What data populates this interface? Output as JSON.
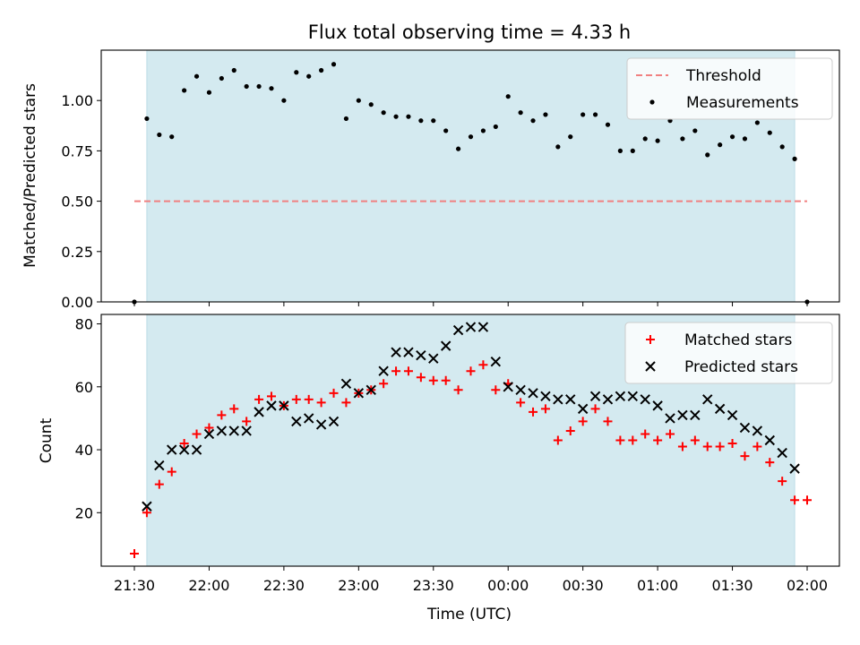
{
  "chart_data": [
    {
      "type": "scatter",
      "title": "Flux total observing time = 4.33 h",
      "ylabel": "Matched/Predicted stars",
      "xlabel": "",
      "ylim": [
        0,
        1.25
      ],
      "yticks": [
        "0.00",
        "0.25",
        "0.50",
        "0.75",
        "1.00"
      ],
      "shaded_x_range": [
        "21:35",
        "01:55"
      ],
      "shade_color": "#d4eaf0",
      "legend_position": "top-right",
      "threshold": {
        "name": "Threshold",
        "value": 0.5,
        "color": "#f08080",
        "style": "dashed",
        "x": [
          "21:30",
          "02:00"
        ]
      },
      "series": [
        {
          "name": "Measurements",
          "marker": "dot",
          "color": "#000000",
          "x": [
            "21:30",
            "21:35",
            "21:40",
            "21:45",
            "21:50",
            "21:55",
            "22:00",
            "22:05",
            "22:10",
            "22:15",
            "22:20",
            "22:25",
            "22:30",
            "22:35",
            "22:40",
            "22:45",
            "22:50",
            "22:55",
            "23:00",
            "23:05",
            "23:10",
            "23:15",
            "23:20",
            "23:25",
            "23:30",
            "23:35",
            "23:40",
            "23:45",
            "23:50",
            "23:55",
            "00:00",
            "00:05",
            "00:10",
            "00:15",
            "00:20",
            "00:25",
            "00:30",
            "00:35",
            "00:40",
            "00:45",
            "00:50",
            "00:55",
            "01:00",
            "01:05",
            "01:10",
            "01:15",
            "01:20",
            "01:25",
            "01:30",
            "01:35",
            "01:40",
            "01:45",
            "01:50",
            "01:55",
            "02:00"
          ],
          "values": [
            0.0,
            0.91,
            0.83,
            0.82,
            1.05,
            1.12,
            1.04,
            1.11,
            1.15,
            1.07,
            1.07,
            1.06,
            1.0,
            1.14,
            1.12,
            1.15,
            1.18,
            0.91,
            1.0,
            0.98,
            0.94,
            0.92,
            0.92,
            0.9,
            0.9,
            0.85,
            0.76,
            0.82,
            0.85,
            0.87,
            1.02,
            0.94,
            0.9,
            0.93,
            0.77,
            0.82,
            0.93,
            0.93,
            0.88,
            0.75,
            0.75,
            0.81,
            0.8,
            0.9,
            0.81,
            0.85,
            0.73,
            0.78,
            0.82,
            0.81,
            0.89,
            0.84,
            0.77,
            0.71,
            0.0
          ]
        }
      ]
    },
    {
      "type": "scatter",
      "title": "",
      "ylabel": "Count",
      "xlabel": "Time (UTC)",
      "ylim": [
        3,
        83
      ],
      "yticks": [
        "20",
        "40",
        "60",
        "80"
      ],
      "xticks": [
        "21:30",
        "22:00",
        "22:30",
        "23:00",
        "23:30",
        "00:00",
        "00:30",
        "01:00",
        "01:30",
        "02:00"
      ],
      "shaded_x_range": [
        "21:35",
        "01:55"
      ],
      "shade_color": "#d4eaf0",
      "legend_position": "top-right",
      "series": [
        {
          "name": "Matched stars",
          "marker": "plus",
          "color": "#ff0000",
          "x": [
            "21:30",
            "21:35",
            "21:40",
            "21:45",
            "21:50",
            "21:55",
            "22:00",
            "22:05",
            "22:10",
            "22:15",
            "22:20",
            "22:25",
            "22:30",
            "22:35",
            "22:40",
            "22:45",
            "22:50",
            "22:55",
            "23:00",
            "23:05",
            "23:10",
            "23:15",
            "23:20",
            "23:25",
            "23:30",
            "23:35",
            "23:40",
            "23:45",
            "23:50",
            "23:55",
            "00:00",
            "00:05",
            "00:10",
            "00:15",
            "00:20",
            "00:25",
            "00:30",
            "00:35",
            "00:40",
            "00:45",
            "00:50",
            "00:55",
            "01:00",
            "01:05",
            "01:10",
            "01:15",
            "01:20",
            "01:25",
            "01:30",
            "01:35",
            "01:40",
            "01:45",
            "01:50",
            "01:55",
            "02:00"
          ],
          "values": [
            7,
            20,
            29,
            33,
            42,
            45,
            47,
            51,
            53,
            49,
            56,
            57,
            54,
            56,
            56,
            55,
            58,
            55,
            58,
            59,
            61,
            65,
            65,
            63,
            62,
            62,
            59,
            65,
            67,
            59,
            61,
            55,
            52,
            53,
            43,
            46,
            49,
            53,
            49,
            43,
            43,
            45,
            43,
            45,
            41,
            43,
            41,
            41,
            42,
            38,
            41,
            36,
            30,
            24,
            24
          ]
        },
        {
          "name": "Predicted stars",
          "marker": "x",
          "color": "#000000",
          "x": [
            "21:35",
            "21:40",
            "21:45",
            "21:50",
            "21:55",
            "22:00",
            "22:05",
            "22:10",
            "22:15",
            "22:20",
            "22:25",
            "22:30",
            "22:35",
            "22:40",
            "22:45",
            "22:50",
            "22:55",
            "23:00",
            "23:05",
            "23:10",
            "23:15",
            "23:20",
            "23:25",
            "23:30",
            "23:35",
            "23:40",
            "23:45",
            "23:50",
            "23:55",
            "00:00",
            "00:05",
            "00:10",
            "00:15",
            "00:20",
            "00:25",
            "00:30",
            "00:35",
            "00:40",
            "00:45",
            "00:50",
            "00:55",
            "01:00",
            "01:05",
            "01:10",
            "01:15",
            "01:20",
            "01:25",
            "01:30",
            "01:35",
            "01:40",
            "01:45",
            "01:50",
            "01:55"
          ],
          "values": [
            22,
            35,
            40,
            40,
            40,
            45,
            46,
            46,
            46,
            52,
            54,
            54,
            49,
            50,
            48,
            49,
            61,
            58,
            59,
            65,
            71,
            71,
            70,
            69,
            73,
            78,
            79,
            79,
            68,
            60,
            59,
            58,
            57,
            56,
            56,
            53,
            57,
            56,
            57,
            57,
            56,
            54,
            50,
            51,
            51,
            56,
            53,
            51,
            47,
            46,
            43,
            39,
            34
          ]
        }
      ]
    }
  ]
}
